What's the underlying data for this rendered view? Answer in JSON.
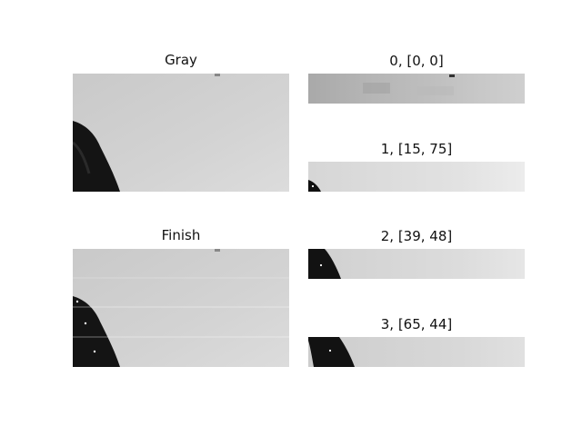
{
  "panels": {
    "gray": {
      "title": "Gray"
    },
    "finish": {
      "title": "Finish"
    },
    "strips": [
      {
        "title": "0, [0, 0]"
      },
      {
        "title": "1, [15, 75]"
      },
      {
        "title": "2, [39, 48]"
      },
      {
        "title": "3, [65, 44]"
      }
    ]
  }
}
